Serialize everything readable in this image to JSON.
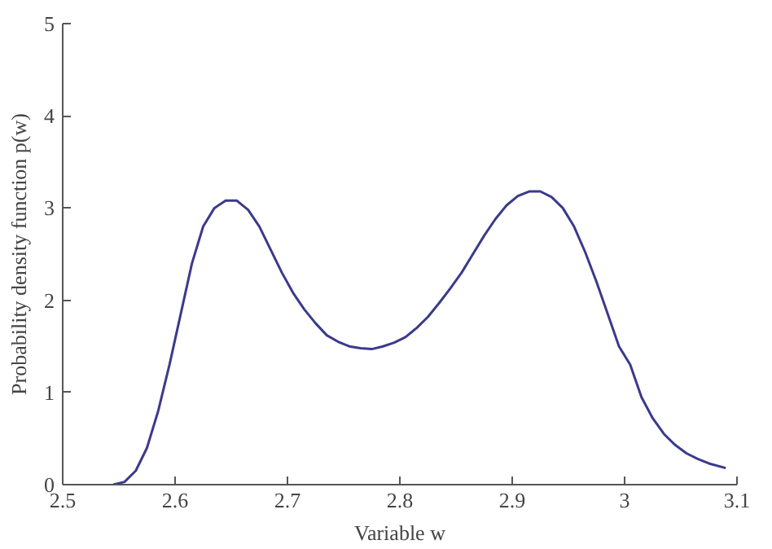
{
  "chart_data": {
    "type": "line",
    "xlabel": "Variable w",
    "ylabel": "Probability density function p(w)",
    "xlim": [
      2.5,
      3.1
    ],
    "ylim": [
      0,
      5
    ],
    "xticks": [
      2.5,
      2.6,
      2.7,
      2.8,
      2.9,
      {
        "value": 3.0,
        "label": "3"
      },
      3.1
    ],
    "yticks": [
      0,
      1,
      2,
      3,
      4,
      5
    ],
    "grid": false,
    "x": [
      2.545,
      2.555,
      2.565,
      2.575,
      2.585,
      2.595,
      2.605,
      2.615,
      2.625,
      2.635,
      2.645,
      2.655,
      2.665,
      2.675,
      2.685,
      2.695,
      2.705,
      2.715,
      2.725,
      2.735,
      2.745,
      2.755,
      2.765,
      2.775,
      2.785,
      2.795,
      2.805,
      2.815,
      2.825,
      2.835,
      2.845,
      2.855,
      2.865,
      2.875,
      2.885,
      2.895,
      2.905,
      2.915,
      2.925,
      2.935,
      2.945,
      2.955,
      2.965,
      2.975,
      2.985,
      2.995,
      3.005,
      3.015,
      3.025,
      3.035,
      3.045,
      3.055,
      3.065,
      3.075,
      3.09
    ],
    "series": [
      {
        "color": "#3a3a8c",
        "values": [
          0,
          0.03,
          0.15,
          0.4,
          0.8,
          1.3,
          1.85,
          2.4,
          2.8,
          3.0,
          3.08,
          3.08,
          2.98,
          2.8,
          2.55,
          2.3,
          2.08,
          1.9,
          1.75,
          1.62,
          1.55,
          1.5,
          1.48,
          1.47,
          1.5,
          1.54,
          1.6,
          1.7,
          1.82,
          1.97,
          2.13,
          2.3,
          2.5,
          2.7,
          2.88,
          3.03,
          3.13,
          3.18,
          3.18,
          3.12,
          3.0,
          2.8,
          2.52,
          2.2,
          1.85,
          1.5,
          1.3,
          0.95,
          0.72,
          0.55,
          0.43,
          0.34,
          0.28,
          0.23,
          0.18
        ]
      }
    ]
  }
}
